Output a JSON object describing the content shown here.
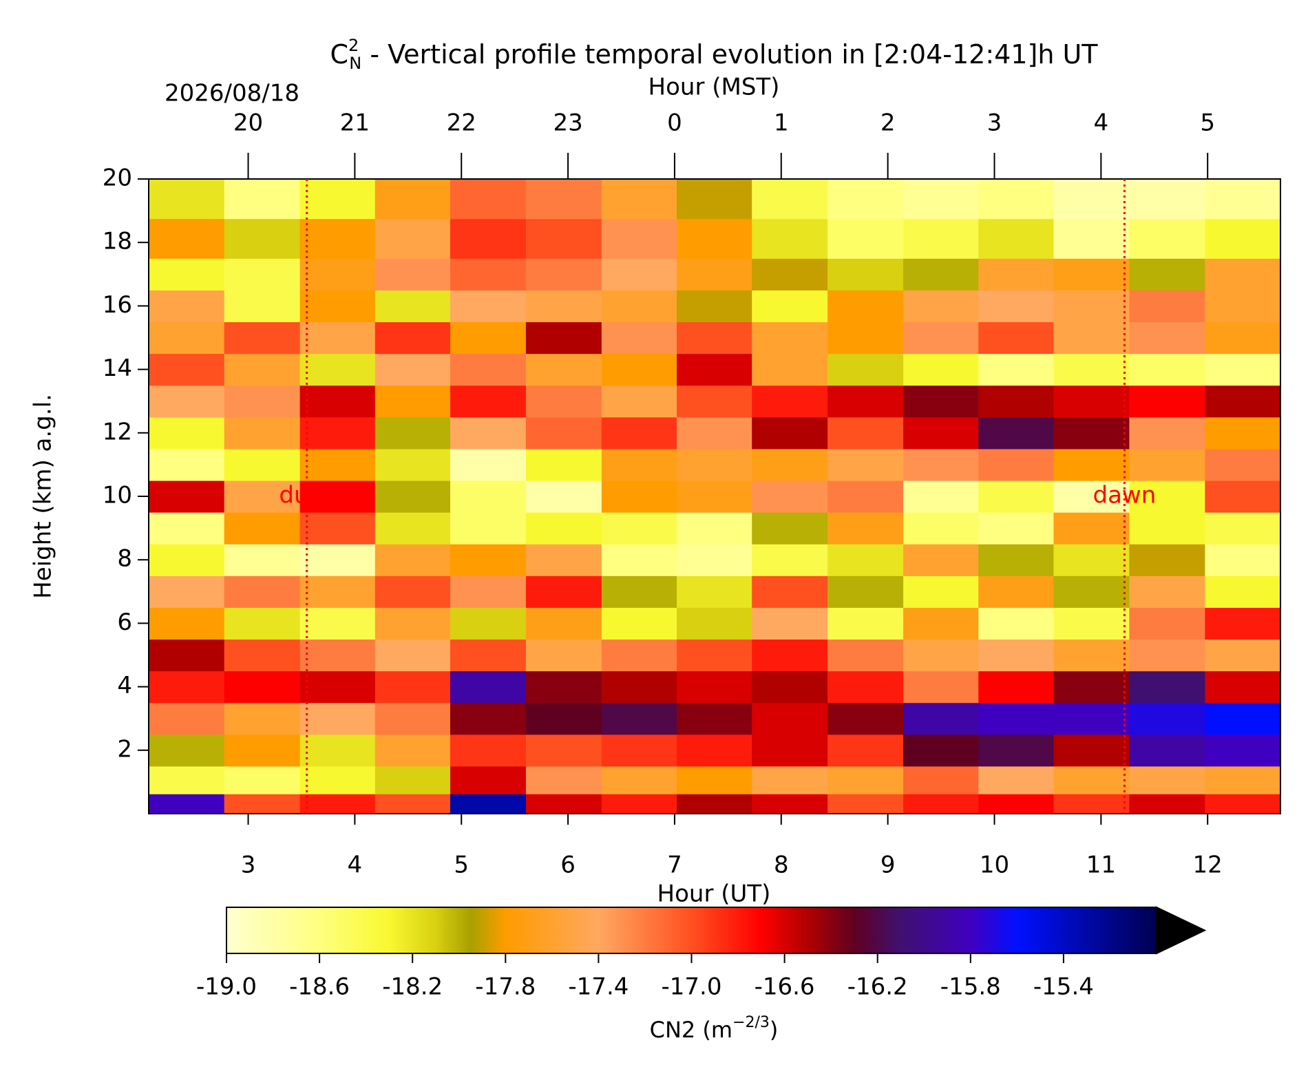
{
  "chart_data": {
    "type": "heatmap",
    "title": {
      "symbol": "C",
      "sub": "N",
      "sup": "2",
      "text": " - Vertical profile temporal evolution in [2:04-12:41]h UT"
    },
    "date_label": "2026/08/18",
    "xlabel": "Hour (UT)",
    "x2label": "Hour (MST)",
    "ylabel": "Height (km) a.g.l.",
    "xlim": [
      2.0667,
      12.6833
    ],
    "ylim": [
      0,
      20
    ],
    "xticks": [
      3,
      4,
      5,
      6,
      7,
      8,
      9,
      10,
      11,
      12
    ],
    "x2ticks": [
      {
        "value": 3,
        "label": "20"
      },
      {
        "value": 4,
        "label": "21"
      },
      {
        "value": 5,
        "label": "22"
      },
      {
        "value": 6,
        "label": "23"
      },
      {
        "value": 7,
        "label": "0"
      },
      {
        "value": 8,
        "label": "1"
      },
      {
        "value": 9,
        "label": "2"
      },
      {
        "value": 10,
        "label": "3"
      },
      {
        "value": 11,
        "label": "4"
      },
      {
        "value": 12,
        "label": "5"
      }
    ],
    "yticks": [
      2,
      4,
      6,
      8,
      10,
      12,
      14,
      16,
      18,
      20
    ],
    "annotations": [
      {
        "text": "dusk",
        "x": 3.55,
        "y": 10,
        "color": "#ff0000"
      },
      {
        "text": "dawn",
        "x": 11.22,
        "y": 10,
        "color": "#ff0000"
      }
    ],
    "x": [
      2.42,
      3.13,
      3.84,
      4.54,
      5.25,
      5.96,
      6.67,
      7.37,
      8.08,
      8.79,
      9.5,
      10.2,
      10.91,
      11.62,
      12.33
    ],
    "y": [
      0.25,
      1,
      2,
      3,
      4,
      5,
      6,
      7,
      8,
      9,
      10,
      11,
      12,
      13,
      14,
      15,
      16,
      17,
      18,
      19.5
    ],
    "z": [
      [
        -15.8,
        -17.0,
        -16.8,
        -17.0,
        -15.3,
        -16.6,
        -16.8,
        -16.5,
        -16.6,
        -17.0,
        -16.8,
        -16.7,
        -16.9,
        -16.6,
        -16.8
      ],
      [
        -18.4,
        -18.5,
        -18.3,
        -18.1,
        -16.6,
        -17.3,
        -17.6,
        -17.8,
        -17.5,
        -17.6,
        -17.1,
        -17.4,
        -17.6,
        -17.5,
        -17.6
      ],
      [
        -18.0,
        -17.8,
        -18.2,
        -17.6,
        -16.9,
        -17.0,
        -16.9,
        -16.8,
        -16.6,
        -16.9,
        -16.3,
        -16.2,
        -16.5,
        -15.9,
        -15.8
      ],
      [
        -17.2,
        -17.6,
        -17.4,
        -17.2,
        -16.4,
        -16.3,
        -16.2,
        -16.4,
        -16.6,
        -16.4,
        -15.9,
        -15.8,
        -15.8,
        -15.7,
        -15.6
      ],
      [
        -16.8,
        -16.7,
        -16.6,
        -16.9,
        -15.9,
        -16.4,
        -16.5,
        -16.6,
        -16.5,
        -16.8,
        -17.2,
        -16.7,
        -16.4,
        -16.1,
        -16.6
      ],
      [
        -16.5,
        -17.0,
        -17.2,
        -17.4,
        -17.0,
        -17.5,
        -17.2,
        -17.0,
        -16.8,
        -17.2,
        -17.5,
        -17.4,
        -17.6,
        -17.3,
        -17.5
      ],
      [
        -17.8,
        -18.2,
        -18.4,
        -17.6,
        -18.1,
        -17.7,
        -18.3,
        -18.1,
        -17.4,
        -18.4,
        -17.7,
        -18.6,
        -18.4,
        -17.2,
        -16.8
      ],
      [
        -17.4,
        -17.2,
        -17.6,
        -17.0,
        -17.3,
        -16.8,
        -18.0,
        -18.2,
        -17.0,
        -18.0,
        -18.3,
        -17.7,
        -18.0,
        -17.5,
        -18.3
      ],
      [
        -18.3,
        -18.7,
        -18.8,
        -17.6,
        -17.8,
        -17.5,
        -18.6,
        -18.7,
        -18.4,
        -18.2,
        -17.6,
        -18.0,
        -18.2,
        -17.9,
        -18.6
      ],
      [
        -18.6,
        -17.8,
        -17.0,
        -18.2,
        -18.5,
        -18.3,
        -18.4,
        -18.6,
        -18.0,
        -17.7,
        -18.5,
        -18.6,
        -17.7,
        -18.3,
        -18.4
      ],
      [
        -16.6,
        -17.5,
        -16.7,
        -18.0,
        -18.5,
        -18.8,
        -17.8,
        -17.7,
        -17.3,
        -17.2,
        -18.7,
        -18.4,
        -18.8,
        -18.3,
        -17.0
      ],
      [
        -18.6,
        -18.3,
        -17.8,
        -18.2,
        -18.8,
        -18.3,
        -17.7,
        -17.6,
        -17.7,
        -17.5,
        -17.3,
        -17.2,
        -17.8,
        -17.6,
        -17.2
      ],
      [
        -18.3,
        -17.6,
        -16.8,
        -18.0,
        -17.4,
        -17.1,
        -16.9,
        -17.3,
        -16.5,
        -17.0,
        -16.6,
        -16.2,
        -16.4,
        -17.3,
        -17.8
      ],
      [
        -17.4,
        -17.3,
        -16.6,
        -17.8,
        -16.8,
        -17.2,
        -17.5,
        -17.0,
        -16.8,
        -16.6,
        -16.4,
        -16.5,
        -16.6,
        -16.7,
        -16.5
      ],
      [
        -17.0,
        -17.6,
        -18.2,
        -17.4,
        -17.2,
        -17.6,
        -17.8,
        -16.6,
        -17.6,
        -18.1,
        -18.3,
        -18.6,
        -18.4,
        -18.5,
        -18.6
      ],
      [
        -17.6,
        -17.0,
        -17.5,
        -16.9,
        -17.8,
        -16.5,
        -17.3,
        -17.0,
        -17.6,
        -17.8,
        -17.3,
        -17.0,
        -17.5,
        -17.3,
        -17.7
      ],
      [
        -17.5,
        -18.4,
        -17.8,
        -18.2,
        -17.4,
        -17.5,
        -17.6,
        -17.9,
        -18.3,
        -17.8,
        -17.5,
        -17.4,
        -17.5,
        -17.2,
        -17.6
      ],
      [
        -18.3,
        -18.4,
        -17.7,
        -17.3,
        -17.1,
        -17.2,
        -17.4,
        -17.7,
        -17.9,
        -18.1,
        -18.0,
        -17.6,
        -17.7,
        -18.0,
        -17.6
      ],
      [
        -17.8,
        -18.1,
        -17.8,
        -17.5,
        -16.9,
        -17.0,
        -17.3,
        -17.8,
        -18.2,
        -18.5,
        -18.4,
        -18.2,
        -18.7,
        -18.5,
        -18.3
      ],
      [
        -18.2,
        -18.6,
        -18.3,
        -17.7,
        -17.1,
        -17.2,
        -17.6,
        -17.9,
        -18.4,
        -18.6,
        -18.7,
        -18.6,
        -18.8,
        -18.8,
        -18.7
      ]
    ],
    "colormap": [
      [
        -19.0,
        "#ffffd0"
      ],
      [
        -18.6,
        "#ffff80"
      ],
      [
        -18.3,
        "#f8f830"
      ],
      [
        -18.1,
        "#d8d010"
      ],
      [
        -17.95,
        "#a8a000"
      ],
      [
        -17.8,
        "#ff9c00"
      ],
      [
        -17.4,
        "#ffa860"
      ],
      [
        -17.0,
        "#ff5020"
      ],
      [
        -16.7,
        "#ff0000"
      ],
      [
        -16.5,
        "#b00000"
      ],
      [
        -16.3,
        "#600020"
      ],
      [
        -16.1,
        "#401070"
      ],
      [
        -15.8,
        "#4000c0"
      ],
      [
        -15.6,
        "#0010ff"
      ],
      [
        -15.0,
        "#000050"
      ]
    ],
    "over_color": "#000000",
    "clim": [
      -19.0,
      -15.0
    ],
    "colorbar_ticks": [
      {
        "value": -19.0,
        "label": "-19.0"
      },
      {
        "value": -18.6,
        "label": "-18.6"
      },
      {
        "value": -18.2,
        "label": "-18.2"
      },
      {
        "value": -17.8,
        "label": "-17.8"
      },
      {
        "value": -17.4,
        "label": "-17.4"
      },
      {
        "value": -17.0,
        "label": "-17.0"
      },
      {
        "value": -16.6,
        "label": "-16.6"
      },
      {
        "value": -16.2,
        "label": "-16.2"
      },
      {
        "value": -15.8,
        "label": "-15.8"
      },
      {
        "value": -15.4,
        "label": "-15.4"
      }
    ],
    "colorbar_label": {
      "text": "CN2 (m",
      "sup": "−2/3",
      "close": ")"
    }
  }
}
